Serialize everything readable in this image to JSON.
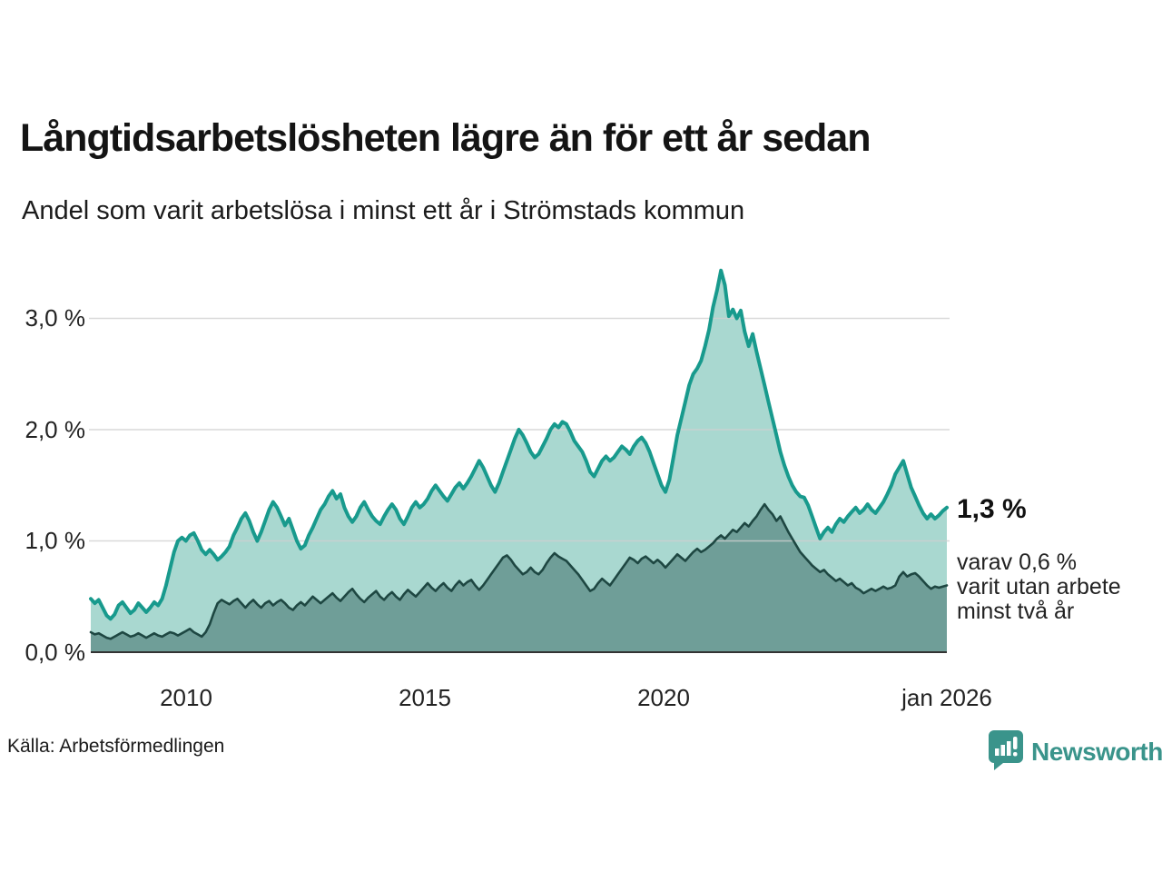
{
  "header": {
    "title": "Långtidsarbetslösheten lägre än för ett år sedan",
    "subtitle": "Andel som varit arbetslösa i minst ett år i Strömstads kommun"
  },
  "annotation": {
    "value_label": "1,3 %",
    "line1": "varav 0,6 %",
    "line2": "varit utan arbete",
    "line3": "minst två år"
  },
  "source": {
    "label": "Källa: Arbetsförmedlingen"
  },
  "brand": {
    "name": "Newsworthy",
    "color": "#3a948b"
  },
  "chart_data": {
    "type": "area",
    "title": "Långtidsarbetslösheten lägre än för ett år sedan",
    "subtitle": "Andel som varit arbetslösa i minst ett år i Strömstads kommun",
    "unit": "percent",
    "x_start_year": 2008,
    "x_end_label": "jan 2026",
    "points_per_year": 12,
    "ylim": [
      0,
      3.6
    ],
    "grid": true,
    "colors": {
      "series1_line": "#189a8d",
      "series1_fill": "#a9d8d0",
      "series2_line": "#1e4742",
      "series2_fill": "#6f9e98",
      "gridline": "#d0d0d0",
      "axis": "#333333"
    },
    "yticks": [
      {
        "value": 3.0,
        "label": "3,0 %"
      },
      {
        "value": 2.0,
        "label": "2,0 %"
      },
      {
        "value": 1.0,
        "label": "1,0 %"
      },
      {
        "value": 0.0,
        "label": "0,0 %"
      }
    ],
    "xticks": [
      {
        "year": 2010.0,
        "label": "2010"
      },
      {
        "year": 2015.0,
        "label": "2015"
      },
      {
        "year": 2020.0,
        "label": "2020"
      },
      {
        "year": 2026.0,
        "label": "jan 2026"
      }
    ],
    "last_values": {
      "min_one_year": 1.3,
      "min_two_years": 0.6
    },
    "series": [
      {
        "name": "Andel arbetslösa minst ett år",
        "values": [
          0.48,
          0.44,
          0.47,
          0.4,
          0.33,
          0.3,
          0.34,
          0.42,
          0.45,
          0.4,
          0.35,
          0.38,
          0.44,
          0.4,
          0.36,
          0.4,
          0.45,
          0.42,
          0.48,
          0.6,
          0.75,
          0.9,
          1.0,
          1.03,
          1.0,
          1.05,
          1.07,
          1.0,
          0.92,
          0.88,
          0.92,
          0.88,
          0.83,
          0.86,
          0.9,
          0.95,
          1.05,
          1.12,
          1.2,
          1.25,
          1.18,
          1.08,
          1.0,
          1.08,
          1.18,
          1.28,
          1.35,
          1.3,
          1.22,
          1.14,
          1.2,
          1.1,
          1.0,
          0.93,
          0.96,
          1.05,
          1.12,
          1.2,
          1.28,
          1.33,
          1.4,
          1.45,
          1.38,
          1.42,
          1.3,
          1.22,
          1.17,
          1.22,
          1.3,
          1.35,
          1.28,
          1.22,
          1.18,
          1.15,
          1.22,
          1.28,
          1.33,
          1.28,
          1.2,
          1.15,
          1.22,
          1.3,
          1.35,
          1.3,
          1.33,
          1.38,
          1.45,
          1.5,
          1.45,
          1.4,
          1.36,
          1.42,
          1.48,
          1.52,
          1.47,
          1.52,
          1.58,
          1.65,
          1.72,
          1.66,
          1.58,
          1.5,
          1.44,
          1.52,
          1.62,
          1.72,
          1.82,
          1.92,
          2.0,
          1.95,
          1.88,
          1.8,
          1.75,
          1.78,
          1.85,
          1.92,
          2.0,
          2.05,
          2.02,
          2.07,
          2.05,
          1.98,
          1.9,
          1.85,
          1.8,
          1.72,
          1.62,
          1.58,
          1.65,
          1.72,
          1.76,
          1.72,
          1.75,
          1.8,
          1.85,
          1.82,
          1.78,
          1.85,
          1.9,
          1.93,
          1.88,
          1.8,
          1.7,
          1.6,
          1.5,
          1.44,
          1.55,
          1.75,
          1.95,
          2.1,
          2.25,
          2.4,
          2.5,
          2.55,
          2.62,
          2.75,
          2.9,
          3.1,
          3.25,
          3.43,
          3.3,
          3.02,
          3.08,
          3.0,
          3.07,
          2.88,
          2.75,
          2.86,
          2.7,
          2.55,
          2.4,
          2.25,
          2.1,
          1.95,
          1.8,
          1.68,
          1.58,
          1.5,
          1.44,
          1.4,
          1.39,
          1.32,
          1.22,
          1.12,
          1.02,
          1.08,
          1.12,
          1.08,
          1.15,
          1.2,
          1.17,
          1.22,
          1.26,
          1.3,
          1.25,
          1.28,
          1.33,
          1.28,
          1.25,
          1.3,
          1.35,
          1.42,
          1.5,
          1.6,
          1.66,
          1.72,
          1.6,
          1.48,
          1.4,
          1.32,
          1.25,
          1.2,
          1.24,
          1.2,
          1.23,
          1.27,
          1.3
        ]
      },
      {
        "name": "Andel arbetslösa minst två år",
        "values": [
          0.18,
          0.16,
          0.17,
          0.15,
          0.13,
          0.12,
          0.14,
          0.16,
          0.18,
          0.16,
          0.14,
          0.15,
          0.17,
          0.15,
          0.13,
          0.15,
          0.17,
          0.15,
          0.14,
          0.16,
          0.18,
          0.17,
          0.15,
          0.17,
          0.19,
          0.21,
          0.18,
          0.16,
          0.14,
          0.18,
          0.25,
          0.35,
          0.44,
          0.47,
          0.45,
          0.43,
          0.46,
          0.48,
          0.44,
          0.4,
          0.44,
          0.47,
          0.43,
          0.4,
          0.44,
          0.46,
          0.42,
          0.45,
          0.47,
          0.44,
          0.4,
          0.38,
          0.42,
          0.45,
          0.42,
          0.46,
          0.5,
          0.47,
          0.44,
          0.47,
          0.5,
          0.53,
          0.49,
          0.46,
          0.5,
          0.54,
          0.57,
          0.52,
          0.48,
          0.45,
          0.49,
          0.52,
          0.55,
          0.5,
          0.47,
          0.51,
          0.54,
          0.5,
          0.47,
          0.52,
          0.56,
          0.53,
          0.5,
          0.54,
          0.58,
          0.62,
          0.58,
          0.55,
          0.59,
          0.62,
          0.58,
          0.55,
          0.6,
          0.64,
          0.6,
          0.63,
          0.65,
          0.6,
          0.56,
          0.6,
          0.65,
          0.7,
          0.75,
          0.8,
          0.85,
          0.87,
          0.83,
          0.78,
          0.74,
          0.7,
          0.72,
          0.76,
          0.72,
          0.7,
          0.74,
          0.8,
          0.85,
          0.89,
          0.86,
          0.84,
          0.82,
          0.78,
          0.74,
          0.7,
          0.65,
          0.6,
          0.55,
          0.57,
          0.62,
          0.66,
          0.63,
          0.6,
          0.65,
          0.7,
          0.75,
          0.8,
          0.85,
          0.83,
          0.8,
          0.84,
          0.86,
          0.83,
          0.8,
          0.83,
          0.8,
          0.76,
          0.8,
          0.84,
          0.88,
          0.85,
          0.82,
          0.86,
          0.9,
          0.93,
          0.9,
          0.92,
          0.95,
          0.98,
          1.02,
          1.05,
          1.02,
          1.06,
          1.1,
          1.08,
          1.12,
          1.16,
          1.13,
          1.18,
          1.22,
          1.28,
          1.33,
          1.28,
          1.24,
          1.18,
          1.22,
          1.15,
          1.08,
          1.02,
          0.96,
          0.9,
          0.86,
          0.82,
          0.78,
          0.75,
          0.72,
          0.74,
          0.7,
          0.67,
          0.64,
          0.66,
          0.63,
          0.6,
          0.62,
          0.58,
          0.56,
          0.53,
          0.55,
          0.57,
          0.55,
          0.57,
          0.59,
          0.57,
          0.58,
          0.6,
          0.68,
          0.72,
          0.68,
          0.7,
          0.71,
          0.68,
          0.64,
          0.6,
          0.57,
          0.59,
          0.58,
          0.59,
          0.6
        ]
      }
    ]
  }
}
